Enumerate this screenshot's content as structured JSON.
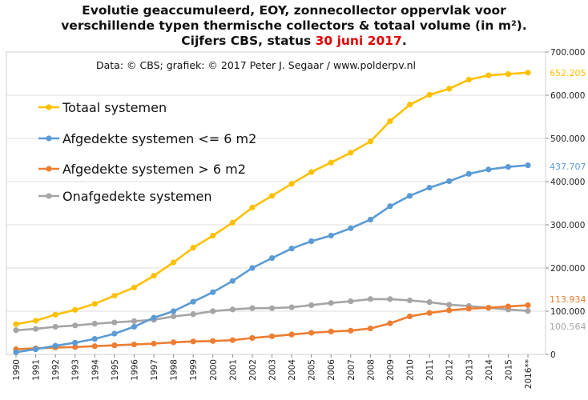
{
  "title": {
    "line1": "Evolutie geaccumuleerd, EOY, zonnecollector oppervlak voor",
    "line2": "verschillende typen thermische collectors & totaal volume (in m²).",
    "line3_prefix": "Cijfers CBS, status ",
    "line3_highlight": "30 juni 2017",
    "line3_suffix": "."
  },
  "source": "Data: © CBS; grafiek: © 2017 Peter J. Segaar / www.polderpv.nl",
  "colors": {
    "totaal": "#FFC000",
    "afgedekt_klein": "#5B9BD5",
    "afgedekt_groot": "#ED7D31",
    "onafgedekt": "#A5A5A5",
    "title_highlight": "#E00000"
  },
  "chart_data": {
    "type": "line",
    "title": "Evolutie geaccumuleerd, EOY, zonnecollector oppervlak voor verschillende typen thermische collectors & totaal volume (in m²). Cijfers CBS, status 30 juni 2017.",
    "xlabel": "",
    "ylabel": "",
    "x": [
      "1990",
      "1991",
      "1992",
      "1993",
      "1994",
      "1995",
      "1996",
      "1997",
      "1998",
      "1999",
      "2000",
      "2001",
      "2002",
      "2003",
      "2004",
      "2005",
      "2006",
      "2007",
      "2008",
      "2009",
      "2010",
      "2011",
      "2012",
      "2013",
      "2014",
      "2015",
      "2016**"
    ],
    "ylim": [
      0,
      700000
    ],
    "y_ticks": [
      "0",
      "100.000",
      "200.000",
      "300.000",
      "400.000",
      "500.000",
      "600.000",
      "700.000"
    ],
    "y_axis_position": "right",
    "grid": true,
    "legend_position": "top-left",
    "series": [
      {
        "name": "Totaal systemen",
        "color": "#FFC000",
        "values": [
          70000,
          78000,
          92000,
          103000,
          117000,
          136000,
          155000,
          182000,
          213000,
          247000,
          275000,
          305000,
          340000,
          367000,
          395000,
          422000,
          444000,
          467000,
          493000,
          540000,
          578000,
          601000,
          615000,
          636000,
          646000,
          649000,
          652205
        ],
        "end_label": "652.205"
      },
      {
        "name": "Afgedekte systemen <= 6 m2",
        "color": "#5B9BD5",
        "values": [
          5000,
          12000,
          20000,
          27000,
          36000,
          48000,
          64000,
          85000,
          100000,
          122000,
          144000,
          170000,
          200000,
          223000,
          245000,
          262000,
          275000,
          292000,
          312000,
          343000,
          367000,
          386000,
          401000,
          418000,
          428000,
          434000,
          437707
        ],
        "end_label": "437.707"
      },
      {
        "name": "Afgedekte systemen > 6 m2",
        "color": "#ED7D31",
        "values": [
          12000,
          14000,
          16000,
          17000,
          19000,
          21000,
          23000,
          25000,
          28000,
          30000,
          31000,
          33000,
          38000,
          42000,
          46000,
          50000,
          53000,
          55000,
          60000,
          72000,
          88000,
          96000,
          102000,
          106000,
          108000,
          111000,
          113934
        ],
        "end_label": "113.934"
      },
      {
        "name": "Onafgedekte systemen",
        "color": "#A5A5A5",
        "values": [
          56000,
          59000,
          64000,
          67000,
          71000,
          74000,
          77000,
          80000,
          88000,
          93000,
          100000,
          104000,
          107000,
          107000,
          109000,
          114000,
          119000,
          123000,
          128000,
          128000,
          125000,
          121000,
          115000,
          112000,
          108000,
          104000,
          100564
        ],
        "end_label": "100.564"
      }
    ]
  }
}
